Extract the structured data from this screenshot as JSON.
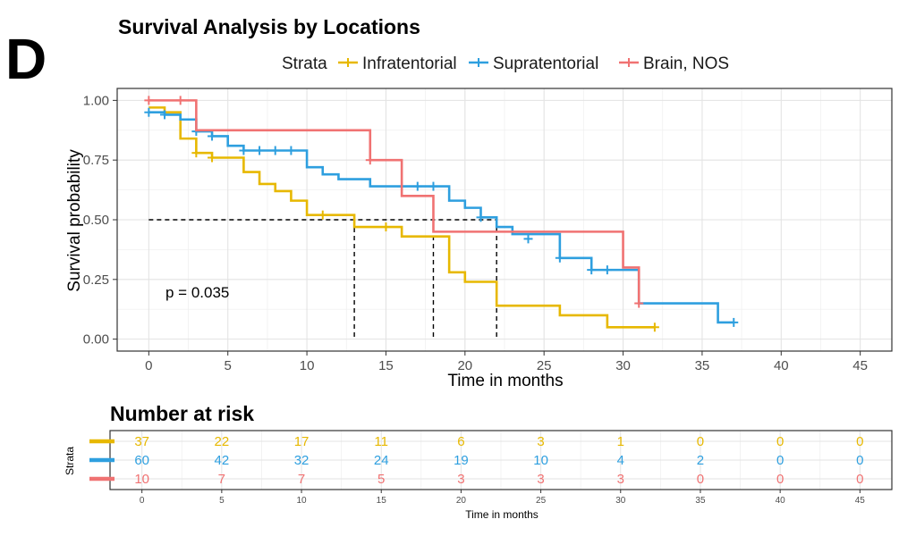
{
  "panel_label": "D",
  "chart_data": {
    "type": "line",
    "title": "Survival Analysis by Locations",
    "xlabel": "Time in months",
    "ylabel": "Survival probability",
    "xlim": [
      -2,
      47
    ],
    "ylim": [
      -0.05,
      1.05
    ],
    "xticks": [
      0,
      5,
      10,
      15,
      20,
      25,
      30,
      35,
      40,
      45
    ],
    "yticks": [
      0.0,
      0.25,
      0.5,
      0.75,
      1.0
    ],
    "ytick_labels": [
      "0.00",
      "0.25",
      "0.50",
      "0.75",
      "1.00"
    ],
    "grid": true,
    "legend": {
      "title": "Strata",
      "position": "top"
    },
    "p_value": "p = 0.035",
    "median_line": {
      "y": 0.5,
      "x_end": 22,
      "drops": [
        13,
        18,
        22
      ]
    },
    "series": [
      {
        "name": "Infratentorial",
        "color": "#E7B800",
        "steps": [
          [
            0,
            0.97
          ],
          [
            1,
            0.95
          ],
          [
            2,
            0.84
          ],
          [
            3,
            0.78
          ],
          [
            4,
            0.76
          ],
          [
            6,
            0.7
          ],
          [
            7,
            0.65
          ],
          [
            8,
            0.62
          ],
          [
            9,
            0.58
          ],
          [
            10,
            0.52
          ],
          [
            13,
            0.47
          ],
          [
            16,
            0.43
          ],
          [
            19,
            0.28
          ],
          [
            20,
            0.24
          ],
          [
            22,
            0.14
          ],
          [
            26,
            0.1
          ],
          [
            29,
            0.05
          ],
          [
            32,
            0.05
          ]
        ],
        "censors": [
          [
            3,
            0.78
          ],
          [
            4,
            0.76
          ],
          [
            11,
            0.52
          ],
          [
            15,
            0.47
          ],
          [
            32,
            0.05
          ]
        ]
      },
      {
        "name": "Supratentorial",
        "color": "#2E9FDF",
        "steps": [
          [
            0,
            0.95
          ],
          [
            1,
            0.94
          ],
          [
            2,
            0.92
          ],
          [
            3,
            0.87
          ],
          [
            4,
            0.85
          ],
          [
            5,
            0.81
          ],
          [
            6,
            0.79
          ],
          [
            10,
            0.72
          ],
          [
            11,
            0.69
          ],
          [
            12,
            0.67
          ],
          [
            14,
            0.64
          ],
          [
            19,
            0.58
          ],
          [
            20,
            0.55
          ],
          [
            21,
            0.51
          ],
          [
            22,
            0.47
          ],
          [
            23,
            0.44
          ],
          [
            26,
            0.34
          ],
          [
            28,
            0.29
          ],
          [
            31,
            0.15
          ],
          [
            36,
            0.07
          ],
          [
            37,
            0.07
          ]
        ],
        "censors": [
          [
            0,
            0.95
          ],
          [
            1,
            0.94
          ],
          [
            3,
            0.87
          ],
          [
            4,
            0.85
          ],
          [
            6,
            0.79
          ],
          [
            7,
            0.79
          ],
          [
            8,
            0.79
          ],
          [
            9,
            0.79
          ],
          [
            16,
            0.64
          ],
          [
            17,
            0.64
          ],
          [
            18,
            0.64
          ],
          [
            21,
            0.51
          ],
          [
            24,
            0.42
          ],
          [
            26,
            0.34
          ],
          [
            28,
            0.29
          ],
          [
            29,
            0.29
          ],
          [
            37,
            0.07
          ]
        ]
      },
      {
        "name": "Brain, NOS",
        "color": "#F07272",
        "steps": [
          [
            0,
            1.0
          ],
          [
            3,
            0.875
          ],
          [
            14,
            0.75
          ],
          [
            16,
            0.6
          ],
          [
            18,
            0.45
          ],
          [
            30,
            0.3
          ],
          [
            31,
            0.15
          ]
        ],
        "censors": [
          [
            0,
            1.0
          ],
          [
            2,
            1.0
          ],
          [
            14,
            0.75
          ],
          [
            31,
            0.15
          ]
        ]
      }
    ]
  },
  "risk_table": {
    "title": "Number at risk",
    "ylabel": "Strata",
    "xlabel": "Time in months",
    "times": [
      0,
      5,
      10,
      15,
      20,
      25,
      30,
      35,
      40,
      45
    ],
    "rows": [
      {
        "name": "Infratentorial",
        "color": "#E7B800",
        "counts": [
          "37",
          "22",
          "17",
          "11",
          "6",
          "3",
          "1",
          "0",
          "0",
          "0"
        ]
      },
      {
        "name": "Supratentorial",
        "color": "#2E9FDF",
        "counts": [
          "60",
          "42",
          "32",
          "24",
          "19",
          "10",
          "4",
          "2",
          "0",
          "0"
        ]
      },
      {
        "name": "Brain, NOS",
        "color": "#F07272",
        "counts": [
          "10",
          "7",
          "7",
          "5",
          "3",
          "3",
          "3",
          "0",
          "0",
          "0"
        ]
      }
    ]
  }
}
